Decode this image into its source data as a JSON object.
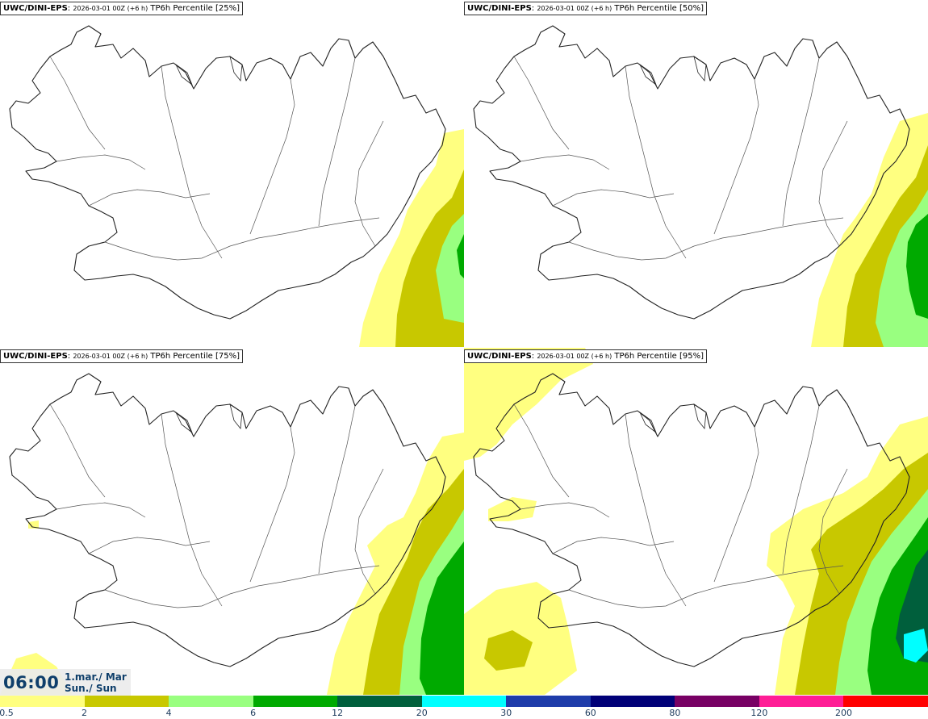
{
  "panels": [
    {
      "model": "UWC/DINI-EPS",
      "run": "2026-03-01 00Z (+6 h)",
      "field": "TP6h Percentile [25%]",
      "percentile": 25
    },
    {
      "model": "UWC/DINI-EPS",
      "run": "2026-03-01 00Z (+6 h)",
      "field": "TP6h Percentile [50%]",
      "percentile": 50
    },
    {
      "model": "UWC/DINI-EPS",
      "run": "2026-03-01 00Z (+6 h)",
      "field": "TP6h Percentile [75%]",
      "percentile": 75
    },
    {
      "model": "UWC/DINI-EPS",
      "run": "2026-03-01 00Z (+6 h)",
      "field": "TP6h Percentile [95%]",
      "percentile": 95
    }
  ],
  "valid_time": {
    "clock": "06:00",
    "date_line1": "1.mar./ Mar",
    "date_line2": "Sun./ Sun"
  },
  "legend": {
    "colors": [
      "#ffff80",
      "#c8c800",
      "#99ff80",
      "#00aa00",
      "#005f3c",
      "#00ffff",
      "#1e3caa",
      "#000078",
      "#780064",
      "#ff1e96",
      "#ff0000"
    ],
    "tick_labels": [
      "0.5",
      "2",
      "4",
      "6",
      "12",
      "20",
      "30",
      "60",
      "80",
      "120",
      "200"
    ]
  },
  "map_colors": {
    "coast": "#222222",
    "roads": "#555555",
    "land": "#ffffff"
  }
}
